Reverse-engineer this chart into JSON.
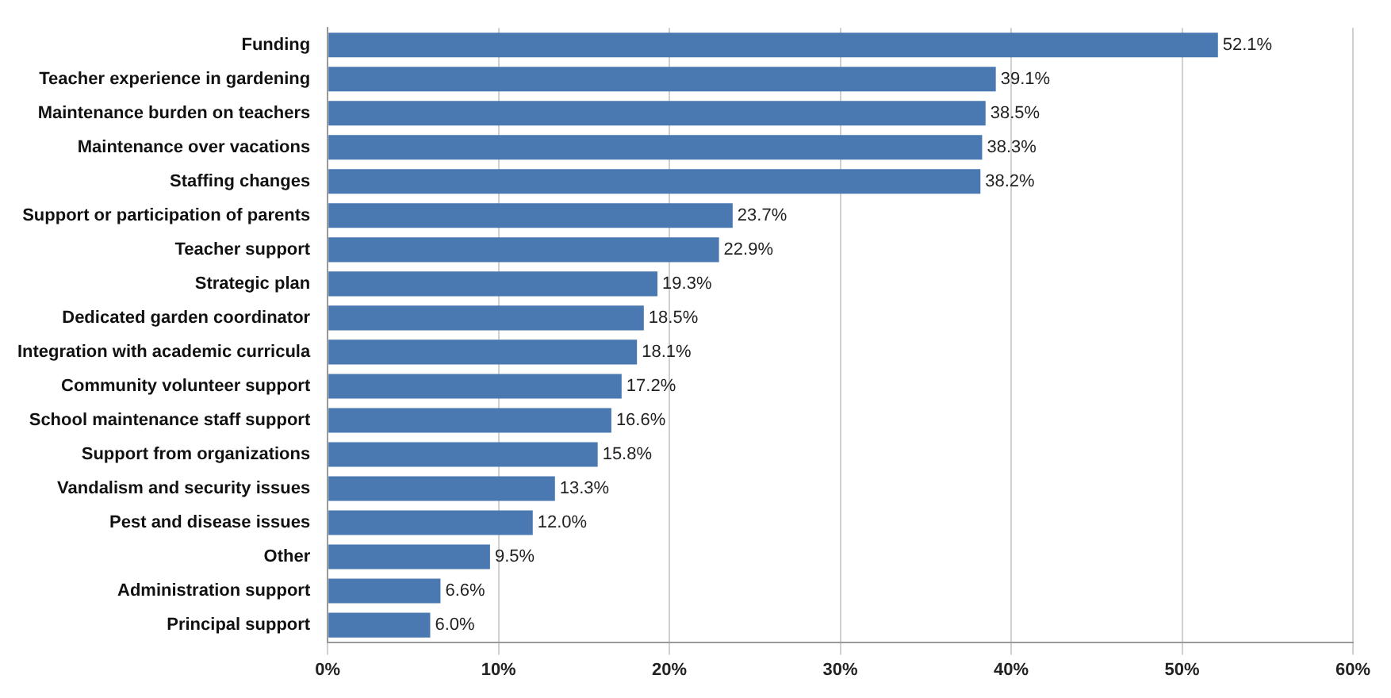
{
  "chart_data": {
    "type": "bar",
    "orientation": "horizontal",
    "categories": [
      "Funding",
      "Teacher experience in gardening",
      "Maintenance burden on teachers",
      "Maintenance over vacations",
      "Staffing changes",
      "Support or participation of parents",
      "Teacher support",
      "Strategic plan",
      "Dedicated garden coordinator",
      "Integration with academic curricula",
      "Community volunteer support",
      "School maintenance staff support",
      "Support from organizations",
      "Vandalism and security issues",
      "Pest and disease issues",
      "Other",
      "Administration support",
      "Principal support"
    ],
    "values": [
      52.1,
      39.1,
      38.5,
      38.3,
      38.2,
      23.7,
      22.9,
      19.3,
      18.5,
      18.1,
      17.2,
      16.6,
      15.8,
      13.3,
      12.0,
      9.5,
      6.6,
      6.0
    ],
    "value_labels": [
      "52.1%",
      "39.1%",
      "38.5%",
      "38.3%",
      "38.2%",
      "23.7%",
      "22.9%",
      "19.3%",
      "18.5%",
      "18.1%",
      "17.2%",
      "16.6%",
      "15.8%",
      "13.3%",
      "12.0%",
      "9.5%",
      "6.6%",
      "6.0%"
    ],
    "color": "#4a78b0",
    "xlim": [
      0,
      60
    ],
    "xticks": [
      {
        "value": 0,
        "label": "0%"
      },
      {
        "value": 10,
        "label": "10%"
      },
      {
        "value": 20,
        "label": "20%"
      },
      {
        "value": 30,
        "label": "30%"
      },
      {
        "value": 40,
        "label": "40%"
      },
      {
        "value": 50,
        "label": "50%"
      },
      {
        "value": 60,
        "label": "60%"
      }
    ],
    "grid": "x",
    "legend": false
  }
}
